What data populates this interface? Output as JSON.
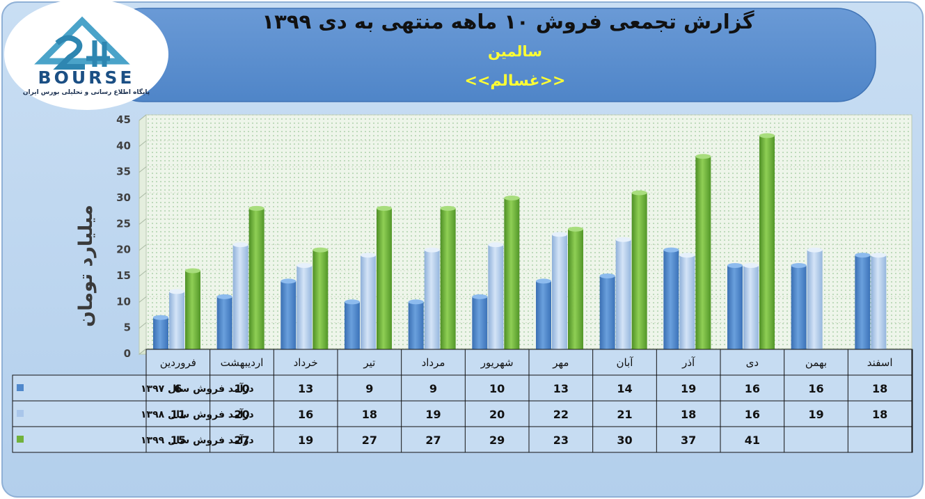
{
  "header": {
    "title": "گزارش تجمعی فروش ۱۰ ماهه منتهی به دی ۱۳۹۹",
    "company": "سالمین",
    "symbol": "<<غسالم>>"
  },
  "logo": {
    "brand": "BOURSE",
    "number": "24",
    "tagline": "پایگاه اطلاع رسانی و تحلیلی بورس ایران"
  },
  "colors": {
    "panel_bg": "#b8d3ee",
    "header_bg": "#5b8fcf",
    "plot_bg": "#eef5ea",
    "series_1397": "#4f88cc",
    "series_1398": "#a9c6ea",
    "series_1399": "#71b23c",
    "title_yellow": "#ffff33"
  },
  "chart_data": {
    "type": "bar",
    "ylabel": "میلیارد تومان",
    "ylim": [
      0,
      45
    ],
    "yticks": [
      0,
      5,
      10,
      15,
      20,
      25,
      30,
      35,
      40,
      45
    ],
    "grid": true,
    "legend": "table-left",
    "categories": [
      "فروردین",
      "اردیبهشت",
      "خرداد",
      "تیر",
      "مرداد",
      "شهریور",
      "مهر",
      "آبان",
      "آذر",
      "دی",
      "بهمن",
      "اسفند"
    ],
    "series": [
      {
        "name": "درآمد فروش سال ۱۳۹۷",
        "values": [
          6,
          10,
          13,
          9,
          9,
          10,
          13,
          14,
          19,
          16,
          16,
          18
        ]
      },
      {
        "name": "درآمد فروش سال ۱۳۹۸",
        "values": [
          11,
          20,
          16,
          18,
          19,
          20,
          22,
          21,
          18,
          16,
          19,
          18
        ]
      },
      {
        "name": "درآمد فروش سال ۱۳۹۹",
        "values": [
          15,
          27,
          19,
          27,
          27,
          29,
          23,
          30,
          37,
          41,
          null,
          null
        ]
      }
    ]
  }
}
